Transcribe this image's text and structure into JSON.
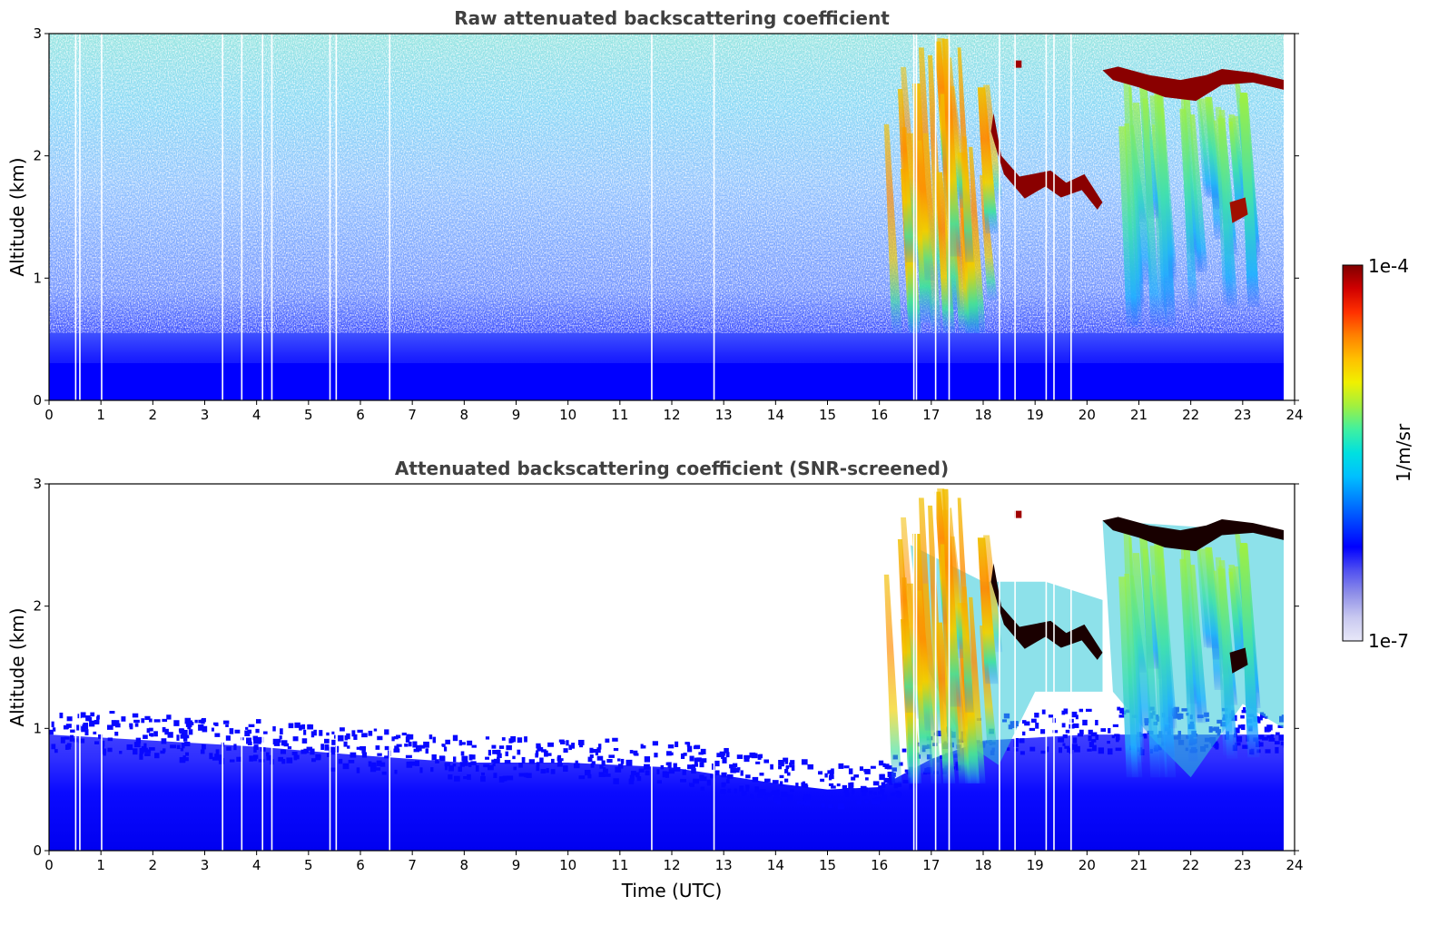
{
  "chart_data": [
    {
      "type": "heatmap",
      "title": "Raw attenuated backscattering coefficient",
      "xlabel": "",
      "ylabel": "Altitude (km)",
      "xlim": [
        0,
        24
      ],
      "ylim": [
        0,
        3
      ],
      "x_ticks": [
        "0",
        "1",
        "2",
        "3",
        "4",
        "5",
        "6",
        "7",
        "8",
        "9",
        "10",
        "11",
        "12",
        "13",
        "14",
        "15",
        "16",
        "17",
        "18",
        "19",
        "20",
        "21",
        "22",
        "23",
        "24"
      ],
      "y_ticks": [
        "0",
        "1",
        "2",
        "3"
      ],
      "data_gaps_utc": [
        0.5,
        0.58,
        1.0,
        3.33,
        3.7,
        4.1,
        4.28,
        5.4,
        5.52,
        6.55,
        11.6,
        12.8,
        16.65,
        16.7,
        17.07,
        17.33,
        18.3,
        18.6,
        19.2,
        19.35,
        19.68
      ],
      "features": [
        {
          "name": "boundary layer",
          "x": [
            0,
            23.8
          ],
          "y_top_km": 0.9,
          "level": "1e-6"
        },
        {
          "name": "precipitation fall streaks",
          "x": [
            15.7,
            18.6
          ],
          "y_km": [
            0.6,
            3.0
          ],
          "level": "1e-5"
        },
        {
          "name": "cloud layer",
          "x": [
            18.4,
            20.3
          ],
          "y_km": [
            1.6,
            1.9
          ],
          "level": "1e-4"
        },
        {
          "name": "cloud layer",
          "x": [
            20.3,
            23.8
          ],
          "y_km": [
            2.4,
            2.7
          ],
          "level": "1e-4"
        },
        {
          "name": "fall streaks",
          "x": [
            20.5,
            23.0
          ],
          "y_km": [
            0.6,
            2.6
          ],
          "level": "1e-5"
        },
        {
          "name": "cloud patch",
          "x": [
            22.7,
            23.1
          ],
          "y_km": [
            1.45,
            1.62
          ],
          "level": "1e-4"
        }
      ]
    },
    {
      "type": "heatmap",
      "title": "Attenuated backscattering coefficient (SNR-screened)",
      "xlabel": "Time (UTC)",
      "ylabel": "Altitude (km)",
      "xlim": [
        0,
        24
      ],
      "ylim": [
        0,
        3
      ],
      "x_ticks": [
        "0",
        "1",
        "2",
        "3",
        "4",
        "5",
        "6",
        "7",
        "8",
        "9",
        "10",
        "11",
        "12",
        "13",
        "14",
        "15",
        "16",
        "17",
        "18",
        "19",
        "20",
        "21",
        "22",
        "23",
        "24"
      ],
      "y_ticks": [
        "0",
        "1",
        "2",
        "3"
      ],
      "boundary_layer_top_km": [
        [
          0,
          0.95
        ],
        [
          2,
          0.9
        ],
        [
          4,
          0.85
        ],
        [
          6,
          0.78
        ],
        [
          8,
          0.72
        ],
        [
          10,
          0.72
        ],
        [
          12,
          0.68
        ],
        [
          14,
          0.55
        ],
        [
          15,
          0.5
        ],
        [
          16,
          0.52
        ],
        [
          17,
          0.75
        ],
        [
          18,
          0.9
        ],
        [
          20,
          0.95
        ],
        [
          22,
          0.95
        ],
        [
          23.8,
          0.95
        ]
      ]
    }
  ],
  "colorbar": {
    "label": "1/m/sr",
    "min_label": "1e-7",
    "max_label": "1e-4",
    "colors": [
      "#e8e8f8",
      "#c8c8f0",
      "#9090e8",
      "#5050f0",
      "#0000ff",
      "#0040ff",
      "#0080ff",
      "#00c0ff",
      "#00e0e0",
      "#40f0a0",
      "#a0f040",
      "#f0f000",
      "#ffc000",
      "#ff8000",
      "#ff3000",
      "#d00000",
      "#800000"
    ]
  }
}
